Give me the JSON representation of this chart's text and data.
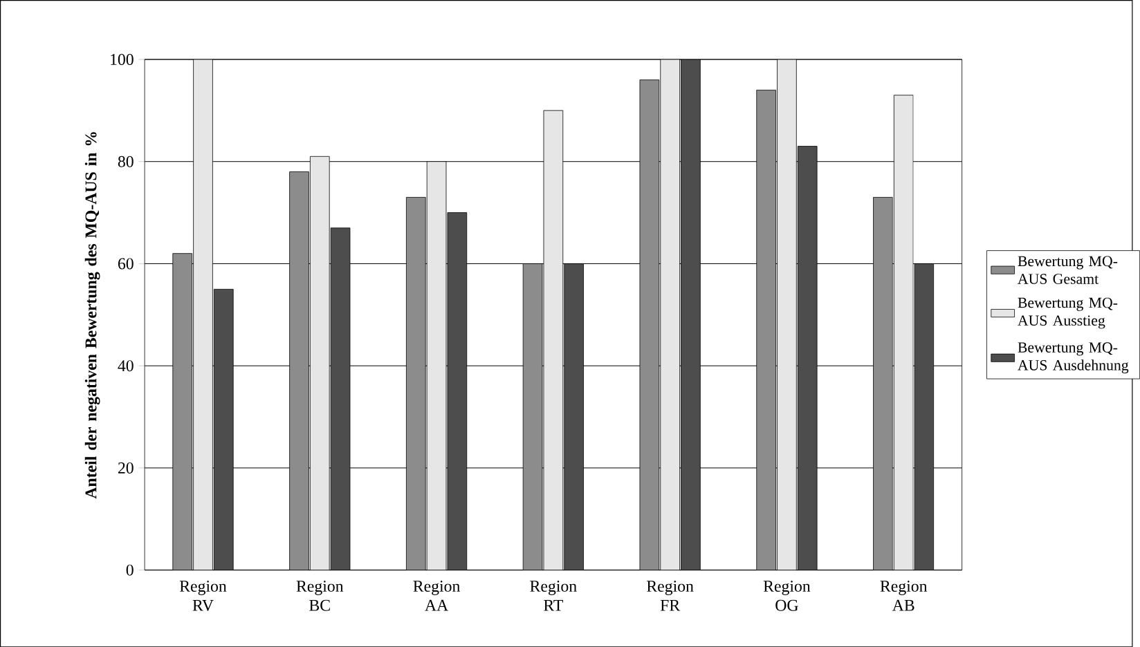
{
  "chart_data": {
    "type": "bar",
    "ylabel": "Anteil der negativen Bewertung des MQ-AUS in %",
    "categories": [
      "Region RV",
      "Region BC",
      "Region AA",
      "Region RT",
      "Region FR",
      "Region OG",
      "Region AB"
    ],
    "series": [
      {
        "name": "Bewertung MQ-AUS Gesamt",
        "color": "#8c8c8c",
        "values": [
          62,
          78,
          73,
          60,
          96,
          94,
          73
        ]
      },
      {
        "name": "Bewertung MQ-AUS Ausstieg",
        "color": "#e6e6e6",
        "values": [
          100,
          81,
          80,
          90,
          100,
          100,
          93
        ]
      },
      {
        "name": "Bewertung MQ-AUS Ausdehnung",
        "color": "#4d4d4d",
        "values": [
          55,
          67,
          70,
          60,
          100,
          83,
          60
        ]
      }
    ],
    "ylim": [
      0,
      100
    ],
    "yticks": [
      0,
      20,
      40,
      60,
      80,
      100
    ],
    "grid": "y",
    "legend": "right"
  }
}
